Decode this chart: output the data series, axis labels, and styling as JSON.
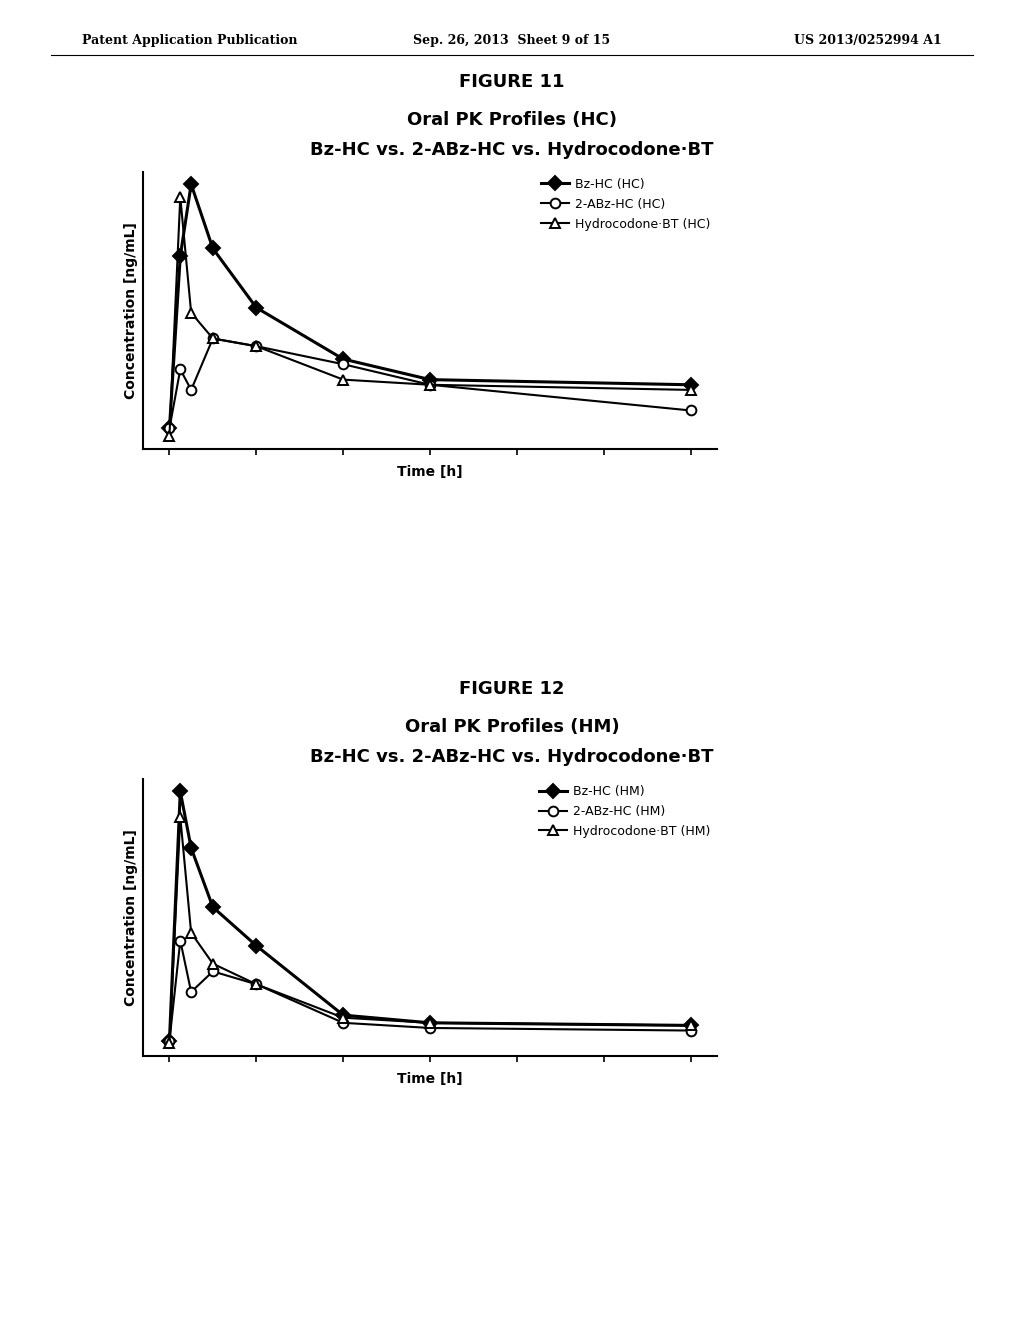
{
  "header_left": "Patent Application Publication",
  "header_center": "Sep. 26, 2013  Sheet 9 of 15",
  "header_right": "US 2013/0252994 A1",
  "fig11": {
    "figure_label": "FIGURE 11",
    "title_line1": "Oral PK Profiles (HC)",
    "title_line2": "Bz-HC vs. 2-ABz-HC vs. Hydrocodone·BT",
    "xlabel": "Time [h]",
    "ylabel": "Concentration [ng/mL]",
    "series": [
      {
        "label": "Bz-HC (HC)",
        "marker": "D",
        "fillstyle": "full",
        "color": "black",
        "linewidth": 2.2,
        "x": [
          0,
          0.5,
          1,
          2,
          4,
          8,
          12,
          24
        ],
        "y": [
          0.05,
          0.72,
          1.0,
          0.75,
          0.52,
          0.32,
          0.24,
          0.22
        ]
      },
      {
        "label": "2-ABz-HC (HC)",
        "marker": "o",
        "fillstyle": "none",
        "color": "black",
        "linewidth": 1.5,
        "x": [
          0,
          0.5,
          1,
          2,
          4,
          8,
          12,
          24
        ],
        "y": [
          0.05,
          0.28,
          0.2,
          0.4,
          0.37,
          0.3,
          0.22,
          0.12
        ]
      },
      {
        "label": "Hydrocodone·BT (HC)",
        "marker": "^",
        "fillstyle": "none",
        "color": "black",
        "linewidth": 1.5,
        "x": [
          0,
          0.5,
          1,
          2,
          4,
          8,
          12,
          24
        ],
        "y": [
          0.02,
          0.95,
          0.5,
          0.4,
          0.37,
          0.24,
          0.22,
          0.2
        ]
      }
    ]
  },
  "fig12": {
    "figure_label": "FIGURE 12",
    "title_line1": "Oral PK Profiles (HM)",
    "title_line2": "Bz-HC vs. 2-ABz-HC vs. Hydrocodone·BT",
    "xlabel": "Time [h]",
    "ylabel": "Concentration [ng/mL]",
    "series": [
      {
        "label": "Bz-HC (HM)",
        "marker": "D",
        "fillstyle": "full",
        "color": "black",
        "linewidth": 2.2,
        "x": [
          0,
          0.5,
          1,
          2,
          4,
          8,
          12,
          24
        ],
        "y": [
          0.03,
          1.0,
          0.78,
          0.55,
          0.4,
          0.13,
          0.1,
          0.09
        ]
      },
      {
        "label": "2-ABz-HC (HM)",
        "marker": "o",
        "fillstyle": "none",
        "color": "black",
        "linewidth": 1.5,
        "x": [
          0,
          0.5,
          1,
          2,
          4,
          8,
          12,
          24
        ],
        "y": [
          0.03,
          0.42,
          0.22,
          0.3,
          0.25,
          0.1,
          0.08,
          0.07
        ]
      },
      {
        "label": "Hydrocodone·BT (HM)",
        "marker": "^",
        "fillstyle": "none",
        "color": "black",
        "linewidth": 1.5,
        "x": [
          0,
          0.5,
          1,
          2,
          4,
          8,
          12,
          24
        ],
        "y": [
          0.02,
          0.9,
          0.45,
          0.33,
          0.25,
          0.12,
          0.1,
          0.09
        ]
      }
    ]
  },
  "background_color": "#ffffff",
  "fontsize_header": 9,
  "fontsize_figure_label": 13,
  "fontsize_title": 13,
  "fontsize_subtitle": 13,
  "fontsize_axis_label": 10,
  "fontsize_legend": 9,
  "fontsize_tick": 9
}
